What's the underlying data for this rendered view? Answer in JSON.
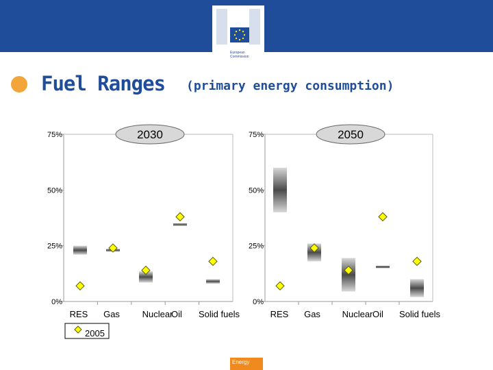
{
  "header": {
    "logo_line1": "European",
    "logo_line2": "Commission",
    "bar_color": "#1f4d9a",
    "icon": "eu-flag-icon"
  },
  "title": {
    "main": "Fuel Ranges",
    "sub": "(primary energy consumption)",
    "color": "#1f4d9a",
    "bullet_color": "#f2a53a"
  },
  "chart_data": [
    {
      "type": "range",
      "title": "2030",
      "categories": [
        "RES",
        "Gas",
        "Nuclear",
        "Oil",
        "Solid fuels"
      ],
      "ylim": [
        0,
        75
      ],
      "yticks": [
        0,
        25,
        50,
        75
      ],
      "ytick_labels": [
        "0%",
        "25%",
        "50%",
        "75%"
      ],
      "ranges": [
        {
          "category": "RES",
          "low": 21,
          "high": 25
        },
        {
          "category": "Gas",
          "low": 22.5,
          "high": 23.5
        },
        {
          "category": "Nuclear",
          "low": 8.5,
          "high": 13.5
        },
        {
          "category": "Oil",
          "low": 34,
          "high": 35
        },
        {
          "category": "Solid fuels",
          "low": 8,
          "high": 10
        }
      ],
      "series_2005": [
        {
          "category": "RES",
          "value": 7
        },
        {
          "category": "Gas",
          "value": 24
        },
        {
          "category": "Nuclear",
          "value": 14
        },
        {
          "category": "Oil",
          "value": 38
        },
        {
          "category": "Solid fuels",
          "value": 18
        }
      ]
    },
    {
      "type": "range",
      "title": "2050",
      "categories": [
        "RES",
        "Gas",
        "Nuclear",
        "Oil",
        "Solid fuels"
      ],
      "ylim": [
        0,
        75
      ],
      "yticks": [
        0,
        25,
        50,
        75
      ],
      "ytick_labels": [
        "0%",
        "25%",
        "50%",
        "75%"
      ],
      "ranges": [
        {
          "category": "RES",
          "low": 40,
          "high": 60
        },
        {
          "category": "Gas",
          "low": 18,
          "high": 26
        },
        {
          "category": "Nuclear",
          "low": 4.5,
          "high": 19.5
        },
        {
          "category": "Oil",
          "low": 15,
          "high": 16
        },
        {
          "category": "Solid fuels",
          "low": 2,
          "high": 10
        }
      ],
      "series_2005": [
        {
          "category": "RES",
          "value": 7
        },
        {
          "category": "Gas",
          "value": 24
        },
        {
          "category": "Nuclear",
          "value": 14
        },
        {
          "category": "Oil",
          "value": 38
        },
        {
          "category": "Solid fuels",
          "value": 18
        }
      ]
    }
  ],
  "legend": {
    "label": "2005",
    "marker_fill": "#ffff00",
    "marker_stroke": "#5a5a00"
  },
  "footer": {
    "badge": "Energy",
    "badge_color": "#f08a1e"
  }
}
